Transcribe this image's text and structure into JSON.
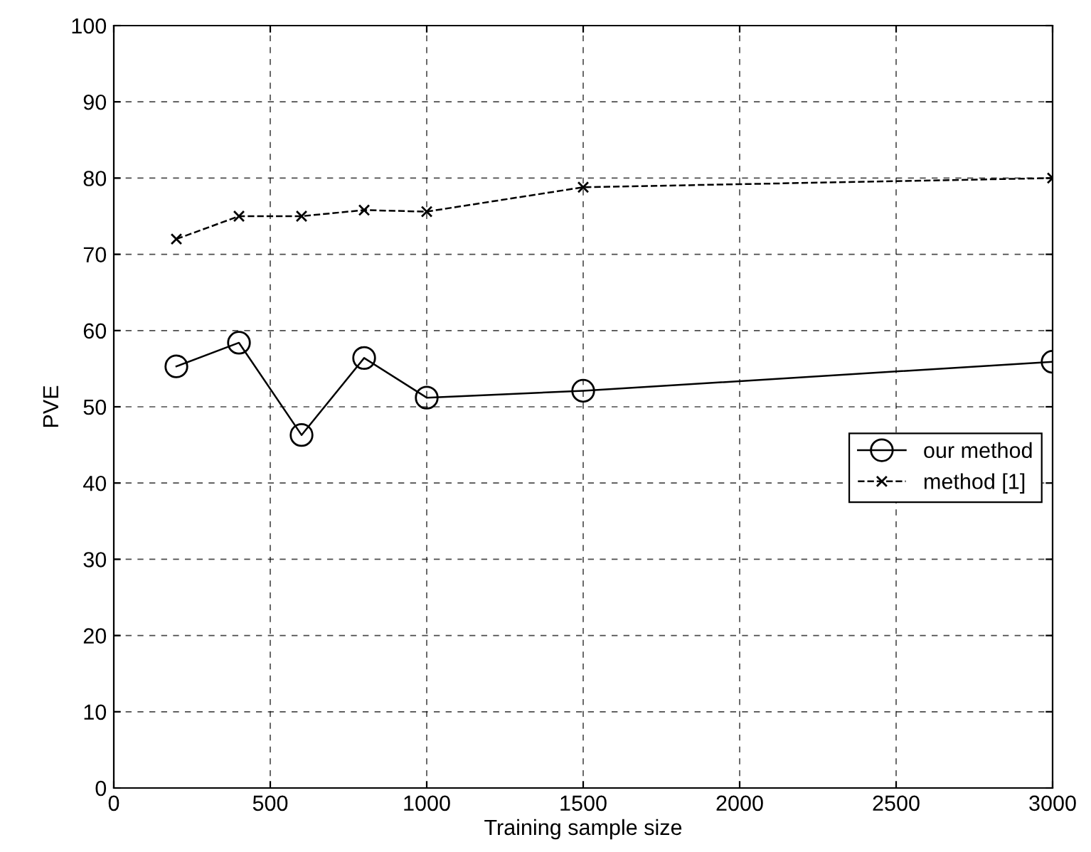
{
  "chart_data": {
    "type": "line",
    "xlabel": "Training sample size",
    "ylabel": "PVE",
    "x": [
      200,
      400,
      600,
      800,
      1000,
      1500,
      3000
    ],
    "series": [
      {
        "name": "our method",
        "color": "#000000",
        "values": [
          55.3,
          58.4,
          46.3,
          56.4,
          51.2,
          52.1,
          55.9
        ],
        "marker": "circle",
        "line_style": "solid"
      },
      {
        "name": "method [1]",
        "color": "#000000",
        "values": [
          72,
          75,
          75,
          75.8,
          75.6,
          78.8,
          80
        ],
        "marker": "cross",
        "line_style": "dashed"
      }
    ],
    "xlim": [
      0,
      3000
    ],
    "xticks": [
      0,
      500,
      1000,
      1500,
      2000,
      2500,
      3000
    ],
    "ylim": [
      0,
      100
    ],
    "yticks": [
      0,
      10,
      20,
      30,
      40,
      50,
      60,
      70,
      80,
      90,
      100
    ],
    "grid": true,
    "legend": "right"
  }
}
